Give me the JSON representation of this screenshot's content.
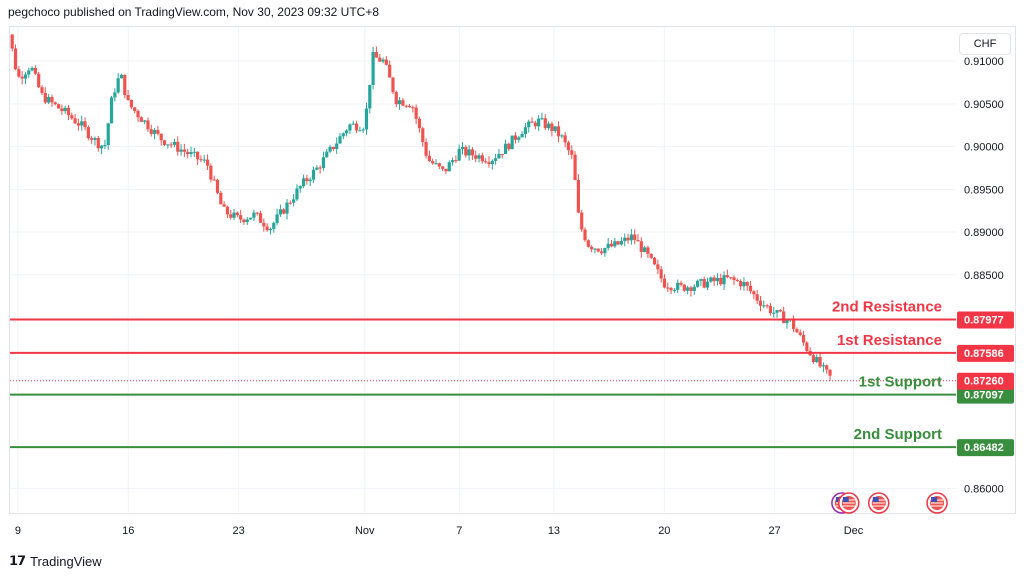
{
  "header": {
    "published": "pegchoco published on TradingView.com, Nov 30, 2023 09:32 UTC+8"
  },
  "currency": "CHF",
  "footer": {
    "brand": "TradingView"
  },
  "colors": {
    "up": "#26a69a",
    "down": "#ef5350",
    "resistance": "#f23645",
    "support": "#388e3c",
    "last": "#f23645"
  },
  "chart_data": {
    "type": "candlestick",
    "instrument_quote_currency": "CHF",
    "ylim": [
      0.857,
      0.914
    ],
    "y_ticks": [
      0.86,
      0.885,
      0.89,
      0.895,
      0.9,
      0.905,
      0.91
    ],
    "y_tick_labels": [
      "0.86000",
      "0.88500",
      "0.89000",
      "0.89500",
      "0.90000",
      "0.90500",
      "0.91000"
    ],
    "x_ticks": [
      {
        "label": "9",
        "day": 0
      },
      {
        "label": "16",
        "day": 7
      },
      {
        "label": "23",
        "day": 14
      },
      {
        "label": "Nov",
        "day": 22
      },
      {
        "label": "7",
        "day": 28
      },
      {
        "label": "13",
        "day": 34
      },
      {
        "label": "20",
        "day": 41
      },
      {
        "label": "27",
        "day": 48
      },
      {
        "label": "Dec",
        "day": 53
      }
    ],
    "xlim_days": [
      -0.5,
      59.5
    ],
    "levels": [
      {
        "label": "2nd Resistance",
        "value": 0.87977,
        "value_text": "0.87977",
        "kind": "resistance"
      },
      {
        "label": "1st Resistance",
        "value": 0.87586,
        "value_text": "0.87586",
        "kind": "resistance"
      },
      {
        "label": "1st Support",
        "value": 0.87097,
        "value_text": "0.87097",
        "kind": "support"
      },
      {
        "label": "2nd Support",
        "value": 0.86482,
        "value_text": "0.86482",
        "kind": "support"
      }
    ],
    "last_price": {
      "value": 0.8726,
      "value_text": "0.87260"
    },
    "anchors": [
      [
        -1.2,
        0.9125
      ],
      [
        -0.6,
        0.9135
      ],
      [
        0.0,
        0.908
      ],
      [
        0.8,
        0.9095
      ],
      [
        1.5,
        0.906
      ],
      [
        2.2,
        0.905
      ],
      [
        3.0,
        0.904
      ],
      [
        4.0,
        0.9025
      ],
      [
        5.0,
        0.9005
      ],
      [
        5.5,
        0.9
      ],
      [
        6.0,
        0.906
      ],
      [
        6.5,
        0.9085
      ],
      [
        7.0,
        0.905
      ],
      [
        8.0,
        0.903
      ],
      [
        9.0,
        0.901
      ],
      [
        10.0,
        0.9
      ],
      [
        11.0,
        0.899
      ],
      [
        12.0,
        0.898
      ],
      [
        13.0,
        0.8925
      ],
      [
        14.0,
        0.8915
      ],
      [
        15.0,
        0.892
      ],
      [
        16.0,
        0.8905
      ],
      [
        17.0,
        0.893
      ],
      [
        18.0,
        0.8955
      ],
      [
        19.0,
        0.8975
      ],
      [
        20.0,
        0.9
      ],
      [
        21.0,
        0.9025
      ],
      [
        22.0,
        0.9025
      ],
      [
        22.5,
        0.9105
      ],
      [
        23.2,
        0.91
      ],
      [
        24.0,
        0.9055
      ],
      [
        25.0,
        0.905
      ],
      [
        26.0,
        0.8985
      ],
      [
        27.0,
        0.897
      ],
      [
        28.0,
        0.8995
      ],
      [
        29.0,
        0.899
      ],
      [
        30.0,
        0.8985
      ],
      [
        31.0,
        0.9
      ],
      [
        32.0,
        0.902
      ],
      [
        33.0,
        0.903
      ],
      [
        34.0,
        0.902
      ],
      [
        34.5,
        0.901
      ],
      [
        35.2,
        0.8985
      ],
      [
        35.6,
        0.891
      ],
      [
        36.2,
        0.8885
      ],
      [
        37.0,
        0.888
      ],
      [
        38.0,
        0.8885
      ],
      [
        39.0,
        0.8895
      ],
      [
        40.0,
        0.887
      ],
      [
        41.0,
        0.884
      ],
      [
        42.0,
        0.8835
      ],
      [
        43.0,
        0.8838
      ],
      [
        44.0,
        0.8842
      ],
      [
        45.0,
        0.8845
      ],
      [
        46.0,
        0.884
      ],
      [
        47.0,
        0.882
      ],
      [
        48.0,
        0.8805
      ],
      [
        49.0,
        0.8795
      ],
      [
        50.0,
        0.8765
      ],
      [
        51.0,
        0.874
      ],
      [
        51.7,
        0.8726
      ]
    ]
  },
  "event_icons": [
    {
      "name": "us-flag-icon",
      "day": 52.2
    },
    {
      "name": "us-flag-icon",
      "day": 52.7
    },
    {
      "name": "us-flag-icon",
      "day": 54.6
    },
    {
      "name": "us-flag-icon",
      "day": 58.3
    }
  ]
}
